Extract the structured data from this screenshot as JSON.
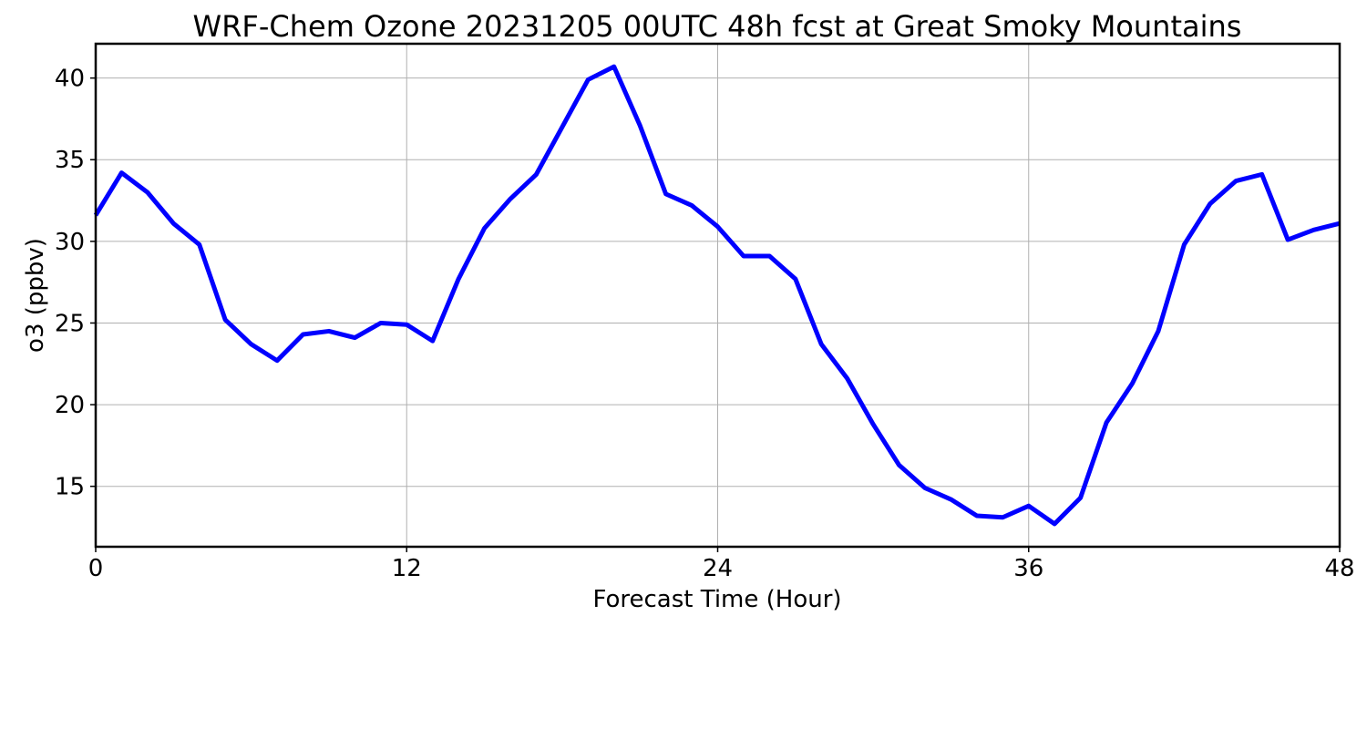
{
  "chart_data": {
    "type": "line",
    "title": "WRF-Chem Ozone  20231205 00UTC 48h fcst at Great Smoky Mountains",
    "xlabel": "Forecast Time (Hour)",
    "ylabel": "o3  (ppbv)",
    "xlim": [
      0,
      48
    ],
    "ylim": [
      11.3,
      42.1
    ],
    "xticks": [
      0,
      12,
      24,
      36,
      48
    ],
    "yticks": [
      15,
      20,
      25,
      30,
      35,
      40
    ],
    "grid": true,
    "series_color": "#0000ff",
    "x": [
      0,
      1,
      2,
      3,
      4,
      5,
      6,
      7,
      8,
      9,
      10,
      11,
      12,
      13,
      14,
      15,
      16,
      17,
      18,
      19,
      20,
      21,
      22,
      23,
      24,
      25,
      26,
      27,
      28,
      29,
      30,
      31,
      32,
      33,
      34,
      35,
      36,
      37,
      38,
      39,
      40,
      41,
      42,
      43,
      44,
      45,
      46,
      47,
      48
    ],
    "series": [
      {
        "values": [
          31.6,
          34.2,
          33.0,
          31.1,
          29.8,
          25.2,
          23.7,
          22.7,
          24.3,
          24.5,
          24.1,
          25.0,
          24.9,
          23.9,
          27.7,
          30.8,
          32.6,
          34.1,
          37.0,
          39.9,
          40.7,
          37.1,
          32.9,
          32.2,
          30.9,
          29.1,
          29.1,
          27.7,
          23.7,
          21.6,
          18.8,
          16.3,
          14.9,
          14.2,
          13.2,
          13.1,
          13.8,
          12.7,
          14.3,
          18.9,
          21.3,
          24.5,
          29.8,
          32.3,
          33.7,
          34.1,
          30.1,
          30.7,
          31.1
        ]
      }
    ]
  }
}
